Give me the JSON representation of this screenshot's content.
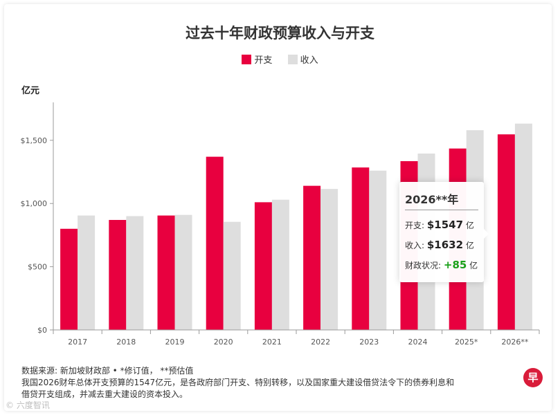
{
  "colors": {
    "expenditure": "#e8003f",
    "revenue": "#dedede",
    "axis": "#9a9a9a",
    "positive": "#1aa01a"
  },
  "chart_data": {
    "type": "bar",
    "title": "过去十年财政预算收入与开支",
    "ylabel": "亿元",
    "xlabel": "",
    "categories": [
      "2017",
      "2018",
      "2019",
      "2020",
      "2021",
      "2022",
      "2023",
      "2024",
      "2025*",
      "2026**"
    ],
    "series": [
      {
        "name": "开支",
        "values": [
          800,
          870,
          905,
          1370,
          1010,
          1140,
          1285,
          1335,
          1435,
          1547
        ]
      },
      {
        "name": "收入",
        "values": [
          905,
          900,
          910,
          855,
          1030,
          1115,
          1260,
          1395,
          1580,
          1632
        ]
      }
    ],
    "estimated_values_note": "2025* 开支 value partially hidden behind tooltip; estimated",
    "ylim": [
      0,
      1800
    ],
    "yticks": [
      0,
      500,
      1000,
      1500
    ],
    "ytick_labels": [
      "$0",
      "$500",
      "$1,000",
      "$1,500"
    ],
    "legend_position": "top-center",
    "grid": false
  },
  "legend": {
    "expenditure": "开支",
    "revenue": "收入"
  },
  "tooltip": {
    "title": "2026**年",
    "expenditure_label": "开支:",
    "expenditure_value": "$1547",
    "expenditure_unit": "亿",
    "revenue_label": "收入:",
    "revenue_value": "$1632",
    "revenue_unit": "亿",
    "status_label": "财政状况:",
    "status_value": "+85",
    "status_unit": "亿"
  },
  "footer": {
    "source": "数据来源: 新加坡财政部 • *修订值， **预估值",
    "note_line1": "我国2026财年总体开支预算的1547亿元，是各政府部门开支、特别转移，以及国家重大建设借贷法令下的债券利息和",
    "note_line2": "借贷开支组成，并减去重大建设的资本投入。",
    "logo": "早",
    "watermark": "© 六度智讯"
  }
}
